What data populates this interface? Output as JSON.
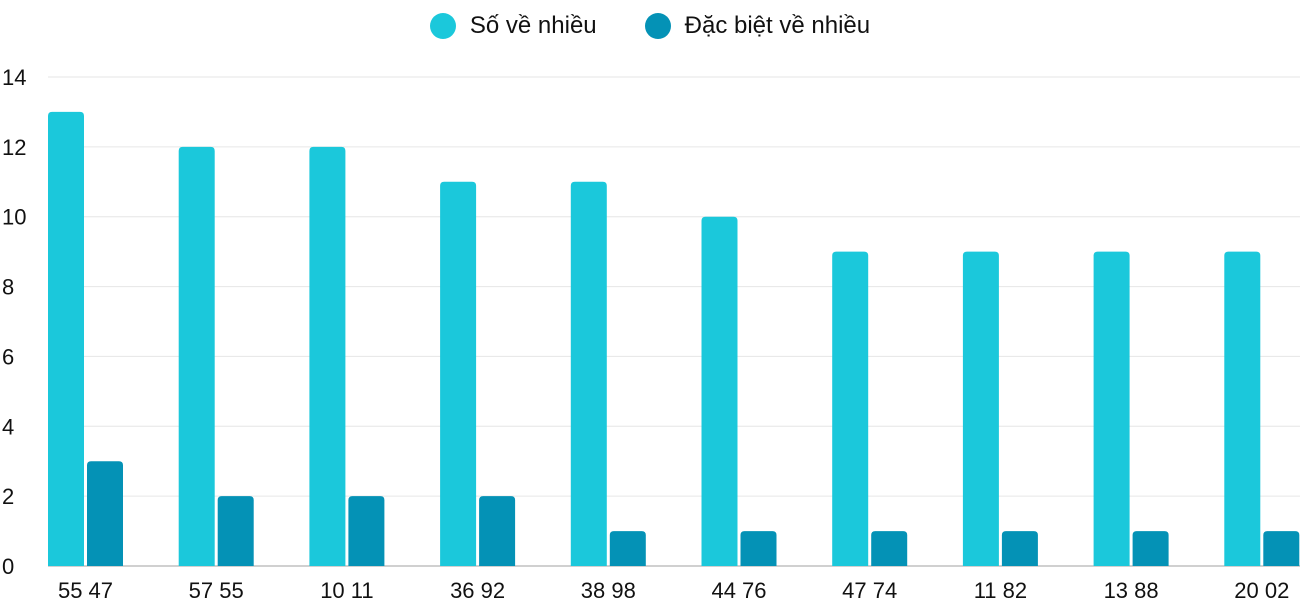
{
  "chart_data": {
    "type": "bar",
    "categories": [
      "55 47",
      "57 55",
      "10 11",
      "36 92",
      "38 98",
      "44 76",
      "47 74",
      "11 82",
      "13 88",
      "20 02"
    ],
    "series": [
      {
        "name": "Số về nhiều",
        "color": "#1bc8db",
        "values": [
          13,
          12,
          12,
          11,
          11,
          10,
          9,
          9,
          9,
          9
        ]
      },
      {
        "name": "Đặc biệt về nhiều",
        "color": "#0492b6",
        "values": [
          3,
          2,
          2,
          2,
          1,
          1,
          1,
          1,
          1,
          1
        ]
      }
    ],
    "ylim": [
      0,
      14
    ],
    "yticks": [
      "0",
      "2",
      "4",
      "6",
      "8",
      "10",
      "12",
      "14"
    ],
    "grid": true,
    "legend": "top-center"
  }
}
